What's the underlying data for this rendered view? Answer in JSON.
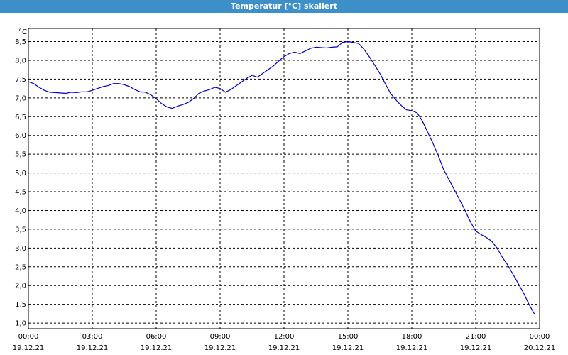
{
  "window": {
    "title": "Temperatur [°C] skaliert"
  },
  "colors": {
    "titlebar": "#3c8fc9",
    "line": "#0000cc",
    "grid": "#000000"
  },
  "chart_data": {
    "type": "line",
    "title": "Temperatur [°C] skaliert",
    "ylabel": "°C",
    "xlabel": "",
    "ylim": [
      0.85,
      8.85
    ],
    "xlim_hours": [
      0,
      24
    ],
    "grid": true,
    "grid_style": "dashed",
    "y_ticks": [
      "1,0",
      "1,5",
      "2,0",
      "2,5",
      "3,0",
      "3,5",
      "4,0",
      "4,5",
      "5,0",
      "5,5",
      "6,0",
      "6,5",
      "7,0",
      "7,5",
      "8,0",
      "8,5"
    ],
    "x_ticks": [
      {
        "time": "00:00",
        "date": "19.12.21"
      },
      {
        "time": "03:00",
        "date": "19.12.21"
      },
      {
        "time": "06:00",
        "date": "19.12.21"
      },
      {
        "time": "09:00",
        "date": "19.12.21"
      },
      {
        "time": "12:00",
        "date": "19.12.21"
      },
      {
        "time": "15:00",
        "date": "19.12.21"
      },
      {
        "time": "18:00",
        "date": "19.12.21"
      },
      {
        "time": "21:00",
        "date": "19.12.21"
      },
      {
        "time": "00:00",
        "date": "20.12.21"
      }
    ],
    "series": [
      {
        "x": [
          0,
          0.25,
          0.5,
          0.75,
          1,
          1.25,
          1.5,
          1.75,
          2,
          2.25,
          2.5,
          2.75,
          3,
          3.25,
          3.5,
          3.75,
          4,
          4.25,
          4.5,
          4.75,
          5,
          5.25,
          5.5,
          5.75,
          6,
          6.25,
          6.5,
          6.75,
          7,
          7.25,
          7.5,
          7.75,
          8,
          8.25,
          8.5,
          8.75,
          9,
          9.25,
          9.5,
          9.75,
          10,
          10.25,
          10.5,
          10.75,
          11,
          11.25,
          11.5,
          11.75,
          12,
          12.25,
          12.5,
          12.75,
          13,
          13.25,
          13.5,
          13.75,
          14,
          14.25,
          14.5,
          14.75,
          15,
          15.25,
          15.5,
          15.75,
          16,
          16.25,
          16.5,
          16.75,
          17,
          17.25,
          17.5,
          17.75,
          18,
          18.25,
          18.5,
          18.75,
          19,
          19.25,
          19.5,
          19.75,
          20,
          20.25,
          20.5,
          20.75,
          21,
          21.25,
          21.5,
          21.75,
          22,
          22.25,
          22.5,
          22.75,
          23,
          23.25,
          23.5,
          23.75
        ],
        "y": [
          7.43,
          7.38,
          7.28,
          7.2,
          7.15,
          7.14,
          7.13,
          7.12,
          7.15,
          7.14,
          7.16,
          7.16,
          7.2,
          7.25,
          7.3,
          7.33,
          7.38,
          7.38,
          7.35,
          7.3,
          7.22,
          7.16,
          7.15,
          7.08,
          6.98,
          6.85,
          6.76,
          6.72,
          6.78,
          6.82,
          6.88,
          6.98,
          7.12,
          7.18,
          7.22,
          7.28,
          7.25,
          7.15,
          7.22,
          7.32,
          7.42,
          7.52,
          7.6,
          7.55,
          7.65,
          7.75,
          7.85,
          7.98,
          8.1,
          8.18,
          8.22,
          8.18,
          8.25,
          8.32,
          8.35,
          8.34,
          8.33,
          8.35,
          8.36,
          8.48,
          8.5,
          8.48,
          8.45,
          8.3,
          8.1,
          7.88,
          7.65,
          7.38,
          7.12,
          6.95,
          6.8,
          6.68,
          6.66,
          6.6,
          6.38,
          6.08,
          5.78,
          5.45,
          5.08,
          4.82,
          4.55,
          4.28,
          4.0,
          3.7,
          3.45,
          3.36,
          3.28,
          3.18,
          3.0,
          2.75,
          2.55,
          2.3,
          2.05,
          1.8,
          1.5,
          1.25
        ]
      }
    ]
  }
}
